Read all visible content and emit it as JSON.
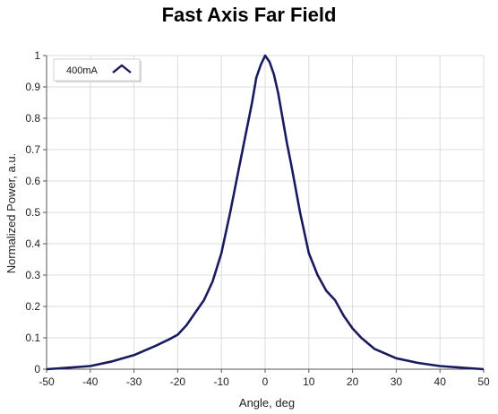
{
  "chart_data": {
    "type": "line",
    "title": "Fast Axis Far Field",
    "xlabel": "Angle, deg",
    "ylabel": "Normalized Power, a.u.",
    "xlim": [
      -50,
      50
    ],
    "ylim": [
      0,
      1
    ],
    "x_ticks": [
      -50,
      -40,
      -30,
      -20,
      -10,
      0,
      10,
      20,
      30,
      40,
      50
    ],
    "y_ticks": [
      0,
      0.1,
      0.2,
      0.3,
      0.4,
      0.5,
      0.6,
      0.7,
      0.8,
      0.9,
      1
    ],
    "x_tick_labels": [
      "-50",
      "-40",
      "-30",
      "-20",
      "-10",
      "0",
      "10",
      "20",
      "30",
      "40",
      "50"
    ],
    "y_tick_labels": [
      "0",
      "0.1",
      "0.2",
      "0.3",
      "0.4",
      "0.5",
      "0.6",
      "0.7",
      "0.8",
      "0.9",
      "1"
    ],
    "grid": true,
    "legend_position": "top-left",
    "series": [
      {
        "name": "400mA",
        "color": "#1a1a5e",
        "x": [
          -50,
          -45,
          -40,
          -35,
          -30,
          -25,
          -22,
          -20,
          -18,
          -16,
          -14,
          -12,
          -10,
          -8,
          -6,
          -5,
          -4,
          -3,
          -2,
          -1,
          0,
          1,
          2,
          3,
          4,
          5,
          6,
          8,
          10,
          12,
          14,
          16,
          18,
          20,
          22,
          25,
          30,
          35,
          40,
          45,
          50
        ],
        "y": [
          0.0,
          0.005,
          0.01,
          0.025,
          0.045,
          0.075,
          0.095,
          0.11,
          0.14,
          0.18,
          0.22,
          0.28,
          0.37,
          0.5,
          0.64,
          0.71,
          0.78,
          0.85,
          0.93,
          0.97,
          1.0,
          0.98,
          0.94,
          0.88,
          0.8,
          0.72,
          0.65,
          0.5,
          0.37,
          0.3,
          0.25,
          0.22,
          0.17,
          0.13,
          0.1,
          0.065,
          0.035,
          0.02,
          0.01,
          0.005,
          0.0
        ]
      }
    ]
  }
}
